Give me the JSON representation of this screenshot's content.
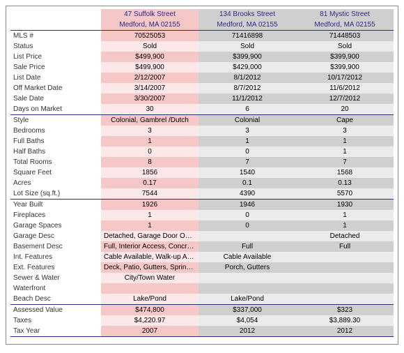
{
  "columns": [
    {
      "addr": "47 Suffolk Street",
      "city": "Medford, MA 02155"
    },
    {
      "addr": "134 Brooks Street",
      "city": "Medford, MA 02155"
    },
    {
      "addr": "81 Mystic Street",
      "city": "Medford, MA 02155"
    }
  ],
  "sections": [
    [
      {
        "label": "MLS #",
        "v": [
          "70525053",
          "71416898",
          "71448503"
        ]
      },
      {
        "label": "Status",
        "v": [
          "Sold",
          "Sold",
          "Sold"
        ]
      },
      {
        "label": "List Price",
        "v": [
          "$499,900",
          "$399,900",
          "$399,900"
        ]
      },
      {
        "label": "Sale Price",
        "v": [
          "$499,900",
          "$429,000",
          "$399,900"
        ]
      },
      {
        "label": "List Date",
        "v": [
          "2/12/2007",
          "8/1/2012",
          "10/17/2012"
        ]
      },
      {
        "label": "Off Market Date",
        "v": [
          "3/14/2007",
          "8/7/2012",
          "11/6/2012"
        ]
      },
      {
        "label": "Sale Date",
        "v": [
          "3/30/2007",
          "11/1/2012",
          "12/7/2012"
        ]
      },
      {
        "label": "Days on Market",
        "v": [
          "30",
          "6",
          "20"
        ]
      }
    ],
    [
      {
        "label": "Style",
        "v": [
          "Colonial, Gambrel /Dutch",
          "Colonial",
          "Cape"
        ]
      },
      {
        "label": "Bedrooms",
        "v": [
          "3",
          "3",
          "3"
        ]
      },
      {
        "label": "Full Baths",
        "v": [
          "1",
          "1",
          "1"
        ]
      },
      {
        "label": "Half Baths",
        "v": [
          "0",
          "0",
          "1"
        ]
      },
      {
        "label": "Total Rooms",
        "v": [
          "8",
          "7",
          "7"
        ]
      },
      {
        "label": "Square Feet",
        "v": [
          "1856",
          "1540",
          "1568"
        ]
      },
      {
        "label": "Acres",
        "v": [
          "0.17",
          "0.1",
          "0.13"
        ]
      },
      {
        "label": "Lot Size (sq.ft.)",
        "v": [
          "7544",
          "4390",
          "5570"
        ]
      }
    ],
    [
      {
        "label": "Year Built",
        "v": [
          "1926",
          "1946",
          "1930"
        ]
      },
      {
        "label": "Fireplaces",
        "v": [
          "1",
          "0",
          "1"
        ]
      },
      {
        "label": "Garage Spaces",
        "v": [
          "1",
          "0",
          "1"
        ]
      },
      {
        "label": "Garage Desc",
        "v": [
          "Detached, Garage Door Opener",
          "",
          "Detached"
        ]
      },
      {
        "label": "Basement Desc",
        "v": [
          "Full, Interior Access, Concret...",
          "Full",
          "Full"
        ]
      },
      {
        "label": "Int. Features",
        "v": [
          "Cable Available, Walk-up Attic",
          "Cable Available",
          ""
        ]
      },
      {
        "label": "Ext. Features",
        "v": [
          "Deck, Patio, Gutters, Sprinkle...",
          "Porch, Gutters",
          ""
        ]
      },
      {
        "label": "Sewer & Water",
        "v": [
          "City/Town Water",
          "",
          ""
        ]
      },
      {
        "label": "Waterfront",
        "v": [
          "",
          "",
          ""
        ]
      },
      {
        "label": "Beach Desc",
        "v": [
          "Lake/Pond",
          "Lake/Pond",
          ""
        ]
      }
    ],
    [
      {
        "label": "Assessed Value",
        "v": [
          "$474,800",
          "$337,000",
          "$323"
        ]
      },
      {
        "label": "Taxes",
        "v": [
          "$4,220.97",
          "$4,054",
          "$3,889.30"
        ]
      },
      {
        "label": "Tax Year",
        "v": [
          "2007",
          "2012",
          "2012"
        ]
      }
    ]
  ],
  "style": {
    "col_bands": [
      "pink",
      "grey",
      "grey"
    ],
    "sep_color": "#2a2a88"
  }
}
